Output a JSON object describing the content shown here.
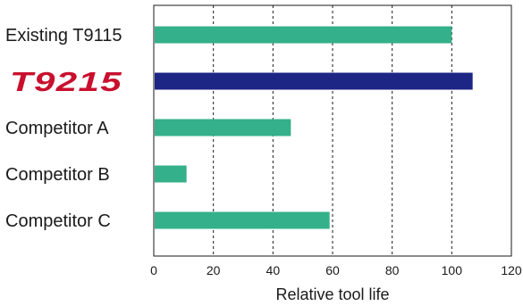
{
  "chart_data": {
    "type": "bar",
    "orientation": "horizontal",
    "categories": [
      "Existing T9115",
      "T9215",
      "Competitor A",
      "Competitor B",
      "Competitor C"
    ],
    "values": [
      100,
      107,
      46,
      11,
      59
    ],
    "colors": [
      "#34b08a",
      "#1d2585",
      "#34b08a",
      "#34b08a",
      "#34b08a"
    ],
    "highlight_color": "#c8102e",
    "xlabel": "Relative tool life",
    "xlim": [
      0,
      120
    ],
    "xticks": [
      0,
      20,
      40,
      60,
      80,
      100,
      120
    ],
    "grid": "vertical-dashed"
  }
}
